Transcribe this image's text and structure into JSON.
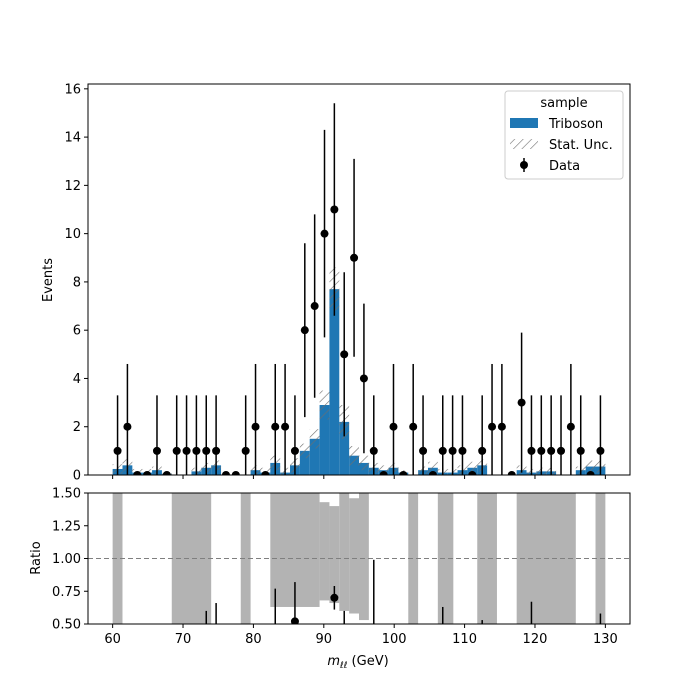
{
  "chart_data": [
    {
      "type": "bar",
      "panel": "main",
      "xlabel_base": "m",
      "xlabel_sub": "ℓℓ",
      "xlabel_unit": " (GeV)",
      "ylabel": "Events",
      "xlim": [
        56.5,
        133.5
      ],
      "ylim": [
        0,
        16.2
      ],
      "x_ticks": [
        60,
        70,
        80,
        90,
        100,
        110,
        120,
        130
      ],
      "y_ticks": [
        0,
        2,
        4,
        6,
        8,
        10,
        12,
        14,
        16
      ],
      "bin_edges": [
        60,
        61.4,
        62.8,
        64.2,
        65.6,
        67,
        68.4,
        69.8,
        71.2,
        72.6,
        74,
        75.4,
        76.8,
        78.2,
        79.6,
        81,
        82.4,
        83.8,
        85.2,
        86.6,
        88,
        89.4,
        90.8,
        92.2,
        93.6,
        95,
        96.4,
        97.8,
        99.2,
        100.6,
        102,
        103.4,
        104.8,
        106.2,
        107.6,
        109,
        110.4,
        111.8,
        113.2,
        114.6,
        116,
        117.4,
        118.8,
        120.2,
        121.6,
        123,
        124.4,
        125.8,
        127.2,
        128.6,
        130
      ],
      "legend": {
        "title": "sample",
        "position": "upper right",
        "entries": [
          "Triboson",
          "Stat. Unc.",
          "Data"
        ]
      },
      "series": [
        {
          "name": "Triboson",
          "kind": "histogram",
          "color": "#1f77b4",
          "values": [
            0.25,
            0.4,
            0.1,
            0.1,
            0.2,
            0.05,
            0,
            0,
            0.15,
            0.3,
            0.4,
            0,
            0,
            0,
            0.2,
            0.1,
            0.5,
            0.1,
            0.4,
            1.0,
            1.5,
            2.9,
            7.7,
            2.2,
            0.8,
            0.5,
            0.3,
            0.2,
            0.3,
            0.1,
            0,
            0.2,
            0.3,
            0.1,
            0.1,
            0.2,
            0.3,
            0.4,
            0,
            0,
            0,
            0.2,
            0.1,
            0.15,
            0.15,
            0,
            0,
            0.2,
            0.35,
            0.35
          ],
          "stat_unc": [
            0.2,
            0.25,
            0.15,
            0.15,
            0.15,
            0.1,
            0,
            0,
            0.15,
            0.2,
            0.2,
            0,
            0,
            0,
            0.2,
            0.2,
            0.3,
            0.2,
            0.3,
            0.3,
            0.4,
            0.6,
            0.9,
            0.7,
            0.4,
            0.3,
            0.2,
            0.2,
            0.2,
            0.1,
            0,
            0.15,
            0.25,
            0.15,
            0.15,
            0.2,
            0.25,
            0.25,
            0,
            0,
            0,
            0.2,
            0.15,
            0.15,
            0.15,
            0,
            0,
            0.15,
            0.25,
            0.25
          ]
        },
        {
          "name": "Data",
          "kind": "points",
          "color": "#000000",
          "x": [
            60.7,
            62.1,
            63.5,
            64.9,
            66.3,
            67.7,
            69.1,
            70.5,
            71.9,
            73.3,
            74.7,
            76.1,
            77.5,
            78.9,
            80.3,
            81.7,
            83.1,
            84.5,
            85.9,
            87.3,
            88.7,
            90.1,
            91.5,
            92.9,
            94.3,
            95.7,
            97.1,
            98.5,
            99.9,
            101.3,
            102.7,
            104.1,
            105.5,
            106.9,
            108.3,
            109.7,
            111.1,
            112.5,
            113.9,
            115.3,
            116.7,
            118.1,
            119.5,
            120.9,
            122.3,
            123.7,
            125.1,
            126.5,
            127.9,
            129.3
          ],
          "y": [
            1,
            2,
            0,
            0,
            1,
            0,
            1,
            1,
            1,
            1,
            1,
            0,
            0,
            1,
            2,
            0,
            2,
            2,
            1,
            6,
            7,
            10,
            11,
            5,
            9,
            4,
            1,
            0,
            2,
            0,
            2,
            1,
            0,
            1,
            1,
            1,
            0,
            1,
            2,
            2,
            0,
            3,
            1,
            1,
            1,
            1,
            2,
            1,
            0,
            1
          ],
          "yerr": [
            2.3,
            2.6,
            0,
            0,
            2.3,
            0,
            2.3,
            2.3,
            2.3,
            2.3,
            2.3,
            0,
            0,
            2.3,
            2.6,
            0,
            2.6,
            2.6,
            2.3,
            3.6,
            3.8,
            4.3,
            4.4,
            3.4,
            4.1,
            3.1,
            2.3,
            0,
            2.6,
            0,
            2.6,
            2.3,
            0,
            2.3,
            2.3,
            2.3,
            0,
            2.3,
            2.6,
            2.6,
            0,
            2.9,
            2.3,
            2.3,
            2.3,
            2.3,
            2.6,
            2.3,
            0,
            2.3
          ]
        }
      ]
    },
    {
      "type": "bar",
      "panel": "ratio",
      "ylabel": "Ratio",
      "xlim": [
        56.5,
        133.5
      ],
      "ylim": [
        0.5,
        1.5
      ],
      "x_ticks": [
        60,
        70,
        80,
        90,
        100,
        110,
        120,
        130
      ],
      "y_ticks": [
        0.5,
        0.75,
        1.0,
        1.25,
        1.5
      ],
      "y_tick_labels": [
        "0.50",
        "0.75",
        "1.00",
        "1.25",
        "1.50"
      ],
      "reference_line": 1.0,
      "unc_band_color": "#b3b3b3",
      "unc_band_segments": [
        {
          "x0": 60,
          "x1": 61.4,
          "lo": 0,
          "hi": 2
        },
        {
          "x0": 68.4,
          "x1": 74,
          "lo": 0,
          "hi": 2
        },
        {
          "x0": 78.2,
          "x1": 79.6,
          "lo": 0,
          "hi": 2
        },
        {
          "x0": 82.4,
          "x1": 89.4,
          "lo": 0.63,
          "hi": 2
        },
        {
          "x0": 89.4,
          "x1": 90.8,
          "lo": 0.68,
          "hi": 1.43
        },
        {
          "x0": 90.8,
          "x1": 92.2,
          "lo": 0.66,
          "hi": 1.4
        },
        {
          "x0": 92.2,
          "x1": 93.6,
          "lo": 0.6,
          "hi": 2
        },
        {
          "x0": 93.6,
          "x1": 95,
          "lo": 0.58,
          "hi": 1.46
        },
        {
          "x0": 95,
          "x1": 96.4,
          "lo": 0.53,
          "hi": 2
        },
        {
          "x0": 102,
          "x1": 103.4,
          "lo": 0,
          "hi": 2
        },
        {
          "x0": 106.2,
          "x1": 108.4,
          "lo": 0,
          "hi": 2
        },
        {
          "x0": 111.8,
          "x1": 114.6,
          "lo": 0,
          "hi": 2
        },
        {
          "x0": 117.4,
          "x1": 125.8,
          "lo": 0,
          "hi": 2
        },
        {
          "x0": 128.6,
          "x1": 130,
          "lo": 0,
          "hi": 2
        }
      ],
      "ratio_points": [
        {
          "x": 85.9,
          "y": 0.52,
          "err": 0.3
        },
        {
          "x": 91.5,
          "y": 0.7,
          "err": 0.09
        }
      ],
      "ratio_error_bars": [
        {
          "x": 73.3,
          "lo": 0.5,
          "hi": 0.6
        },
        {
          "x": 74.7,
          "lo": 0.5,
          "hi": 0.66
        },
        {
          "x": 83.1,
          "lo": 0.5,
          "hi": 0.77
        },
        {
          "x": 92.9,
          "lo": 0.5,
          "hi": 0.6
        },
        {
          "x": 97.1,
          "lo": 0.5,
          "hi": 0.99
        },
        {
          "x": 106.9,
          "lo": 0.5,
          "hi": 0.63
        },
        {
          "x": 112.5,
          "lo": 0.5,
          "hi": 0.53
        },
        {
          "x": 119.5,
          "lo": 0.5,
          "hi": 0.67
        },
        {
          "x": 129.3,
          "lo": 0.5,
          "hi": 0.58
        }
      ]
    }
  ]
}
